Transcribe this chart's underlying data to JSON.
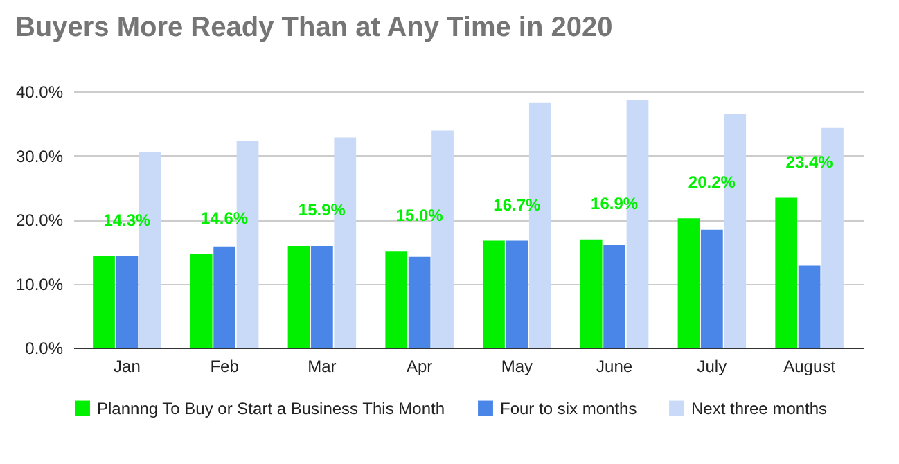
{
  "chart_data": {
    "type": "bar",
    "title": "Buyers More Ready Than at Any Time in 2020",
    "categories": [
      "Jan",
      "Feb",
      "Mar",
      "Apr",
      "May",
      "June",
      "July",
      "August"
    ],
    "series": [
      {
        "name": "Plannng To Buy or Start a Business This Month",
        "color": "#00f000",
        "values": [
          14.3,
          14.6,
          15.9,
          15.0,
          16.7,
          16.9,
          20.2,
          23.4
        ],
        "value_labels": [
          "14.3%",
          "14.6%",
          "15.9%",
          "15.0%",
          "16.7%",
          "16.9%",
          "20.2%",
          "23.4%"
        ]
      },
      {
        "name": "Four to six months",
        "color": "#4a86e8",
        "values": [
          14.3,
          15.8,
          15.9,
          14.2,
          16.7,
          16.0,
          18.4,
          12.8
        ]
      },
      {
        "name": "Next three months",
        "color": "#c9daf8",
        "values": [
          30.5,
          32.3,
          32.8,
          33.9,
          38.2,
          38.7,
          36.5,
          34.3
        ]
      }
    ],
    "ylim": [
      0,
      40
    ],
    "yticks": [
      {
        "value": 0,
        "label": "0.0%"
      },
      {
        "value": 10,
        "label": "10.0%"
      },
      {
        "value": 20,
        "label": "20.0%"
      },
      {
        "value": 30,
        "label": "30.0%"
      },
      {
        "value": 40,
        "label": "40.0%"
      }
    ],
    "grid": "y",
    "legend": "bottom"
  }
}
